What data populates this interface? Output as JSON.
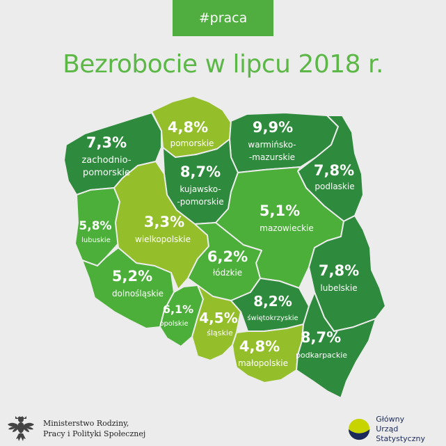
{
  "tag": "#praca",
  "title": "Bezrobocie w lipcu 2018 r.",
  "colors": {
    "dark": "#2e8a3c",
    "mid": "#4caf3a",
    "light": "#94bf2a",
    "title": "#5cb846",
    "tag_bg": "#4fae3f"
  },
  "regions": [
    {
      "key": "zp",
      "name": [
        "zachodnio-",
        "pomorskie"
      ],
      "value": "7,3%",
      "shade": "dark"
    },
    {
      "key": "pm",
      "name": [
        "pomorskie"
      ],
      "value": "4,8%",
      "shade": "light"
    },
    {
      "key": "wm",
      "name": [
        "warmińsko-",
        "-mazurskie"
      ],
      "value": "9,9%",
      "shade": "dark"
    },
    {
      "key": "pd",
      "name": [
        "podlaskie"
      ],
      "value": "7,8%",
      "shade": "dark"
    },
    {
      "key": "kp",
      "name": [
        "kujawsko-",
        "-pomorskie"
      ],
      "value": "8,7%",
      "shade": "dark"
    },
    {
      "key": "lb",
      "name": [
        "lubuskie"
      ],
      "value": "5,8%",
      "shade": "mid"
    },
    {
      "key": "wp",
      "name": [
        "wielkopolskie"
      ],
      "value": "3,3%",
      "shade": "light"
    },
    {
      "key": "mz",
      "name": [
        "mazowieckie"
      ],
      "value": "5,1%",
      "shade": "mid"
    },
    {
      "key": "ld",
      "name": [
        "łódzkie"
      ],
      "value": "6,2%",
      "shade": "mid"
    },
    {
      "key": "ds",
      "name": [
        "dolnośląskie"
      ],
      "value": "5,2%",
      "shade": "mid"
    },
    {
      "key": "lu",
      "name": [
        "lubelskie"
      ],
      "value": "7,8%",
      "shade": "dark"
    },
    {
      "key": "op",
      "name": [
        "opolskie"
      ],
      "value": "6,1%",
      "shade": "mid"
    },
    {
      "key": "sl",
      "name": [
        "śląskie"
      ],
      "value": "4,5%",
      "shade": "light"
    },
    {
      "key": "sw",
      "name": [
        "świętokrzyskie"
      ],
      "value": "8,2%",
      "shade": "dark"
    },
    {
      "key": "mp",
      "name": [
        "małopolskie"
      ],
      "value": "4,8%",
      "shade": "light"
    },
    {
      "key": "pk",
      "name": [
        "podkarpackie"
      ],
      "value": "8,7%",
      "shade": "dark"
    }
  ],
  "footer": {
    "ministry": [
      "Ministerstwo Rodziny,",
      "Pracy i Polityki Społecznej"
    ],
    "gus": [
      "Główny",
      "Urząd Statystyczny"
    ],
    "ministry_logo_icon": "polish-eagle-icon",
    "gus_logo_icon": "gus-logo-icon"
  }
}
